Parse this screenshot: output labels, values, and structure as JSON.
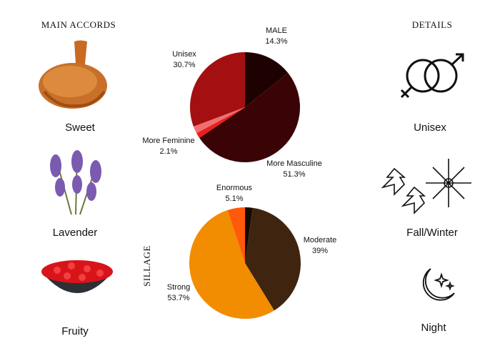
{
  "accords": {
    "title": "MAIN ACCORDS",
    "items": [
      "Sweet",
      "Lavender",
      "Fruity"
    ]
  },
  "details": {
    "title": "DETAILS",
    "items": [
      "Unisex",
      "Fall/Winter",
      "Night"
    ]
  },
  "chart_data": [
    {
      "type": "pie",
      "categories": [
        "MALE",
        "More Masculine",
        null,
        "More Feminine",
        "Unisex"
      ],
      "values": [
        14.3,
        51.3,
        1.6,
        2.1,
        30.7
      ],
      "value_labels": [
        "14.3%",
        "51.3%",
        null,
        "2.1%",
        "30.7%"
      ],
      "colors": [
        "#1e0202",
        "#3a0406",
        "#e8201c",
        "#f07070",
        "#a41012"
      ]
    },
    {
      "type": "pie",
      "title": "SILLAGE",
      "categories": [
        null,
        "Moderate",
        "Strong",
        "Enormous"
      ],
      "values": [
        2.2,
        39,
        53.7,
        5.1
      ],
      "value_labels": [
        null,
        "39%",
        "53.7%",
        "5.1%"
      ],
      "colors": [
        "#150a02",
        "#3f2510",
        "#f28c00",
        "#ff5a0a"
      ]
    }
  ]
}
